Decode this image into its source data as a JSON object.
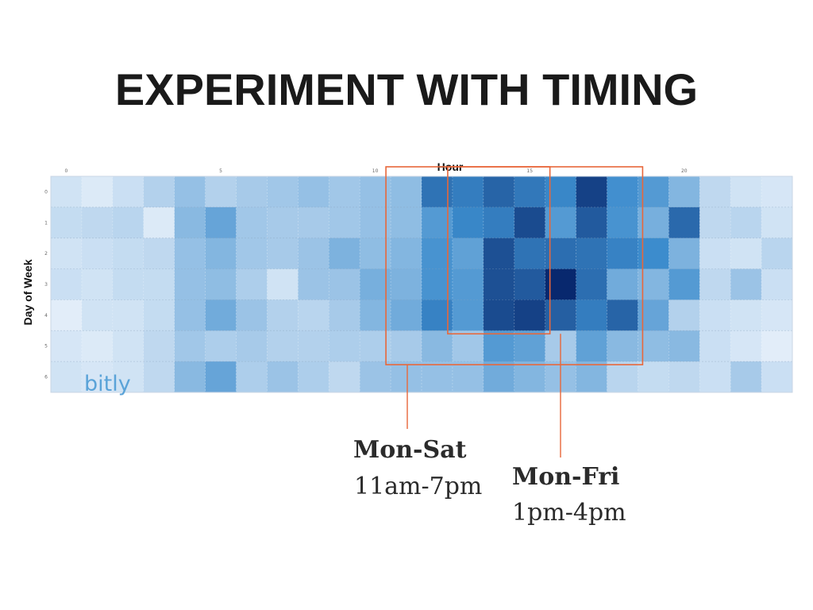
{
  "slide": {
    "title": "EXPERIMENT WITH TIMING"
  },
  "chart_data": {
    "type": "heatmap",
    "title": "",
    "xlabel": "Hour",
    "ylabel": "Day of Week",
    "x_tick_labels": [
      "0",
      "5",
      "10",
      "15",
      "20"
    ],
    "x_tick_hours": [
      0,
      5,
      10,
      15,
      20
    ],
    "y_tick_labels": [
      "0",
      "1",
      "2",
      "3",
      "4",
      "5",
      "6"
    ],
    "grid": true,
    "colormap": "blues",
    "rows": [
      0,
      1,
      2,
      3,
      4,
      5,
      6
    ],
    "columns": [
      0,
      1,
      2,
      3,
      4,
      5,
      6,
      7,
      8,
      9,
      10,
      11,
      12,
      13,
      14,
      15,
      16,
      17,
      18,
      19,
      20,
      21,
      22,
      23
    ],
    "values": [
      [
        0.1,
        0.06,
        0.12,
        0.2,
        0.3,
        0.2,
        0.24,
        0.26,
        0.3,
        0.26,
        0.3,
        0.32,
        0.7,
        0.66,
        0.76,
        0.68,
        0.62,
        0.9,
        0.58,
        0.52,
        0.36,
        0.16,
        0.1,
        0.08
      ],
      [
        0.14,
        0.16,
        0.18,
        0.06,
        0.34,
        0.46,
        0.26,
        0.24,
        0.24,
        0.26,
        0.3,
        0.32,
        0.52,
        0.62,
        0.66,
        0.86,
        0.52,
        0.8,
        0.56,
        0.4,
        0.74,
        0.16,
        0.18,
        0.1
      ],
      [
        0.1,
        0.12,
        0.14,
        0.16,
        0.3,
        0.36,
        0.26,
        0.24,
        0.28,
        0.38,
        0.32,
        0.36,
        0.56,
        0.48,
        0.84,
        0.7,
        0.72,
        0.7,
        0.64,
        0.6,
        0.38,
        0.12,
        0.1,
        0.18
      ],
      [
        0.12,
        0.1,
        0.14,
        0.14,
        0.3,
        0.32,
        0.22,
        0.1,
        0.28,
        0.28,
        0.4,
        0.38,
        0.56,
        0.52,
        0.84,
        0.8,
        1.0,
        0.72,
        0.42,
        0.36,
        0.52,
        0.16,
        0.28,
        0.12
      ],
      [
        0.04,
        0.1,
        0.1,
        0.14,
        0.3,
        0.42,
        0.28,
        0.2,
        0.18,
        0.24,
        0.36,
        0.42,
        0.64,
        0.52,
        0.86,
        0.9,
        0.78,
        0.66,
        0.76,
        0.46,
        0.2,
        0.12,
        0.1,
        0.08
      ],
      [
        0.08,
        0.06,
        0.1,
        0.16,
        0.26,
        0.22,
        0.24,
        0.2,
        0.2,
        0.22,
        0.22,
        0.24,
        0.34,
        0.26,
        0.52,
        0.48,
        0.24,
        0.48,
        0.34,
        0.32,
        0.34,
        0.12,
        0.08,
        0.04
      ],
      [
        0.1,
        0.08,
        0.1,
        0.16,
        0.34,
        0.46,
        0.22,
        0.28,
        0.22,
        0.16,
        0.28,
        0.3,
        0.3,
        0.3,
        0.42,
        0.36,
        0.3,
        0.36,
        0.18,
        0.14,
        0.16,
        0.12,
        0.24,
        0.12
      ]
    ],
    "watermark": "bitly",
    "annotations": [
      {
        "title": "Mon-Sat",
        "subtitle": "11am-7pm",
        "hours": [
          11,
          19
        ],
        "days": [
          0,
          5
        ]
      },
      {
        "title": "Mon-Fri",
        "subtitle": "1pm-4pm",
        "hours": [
          13,
          16
        ],
        "days": [
          0,
          4
        ]
      }
    ],
    "annotation_color": "#e8673a"
  }
}
